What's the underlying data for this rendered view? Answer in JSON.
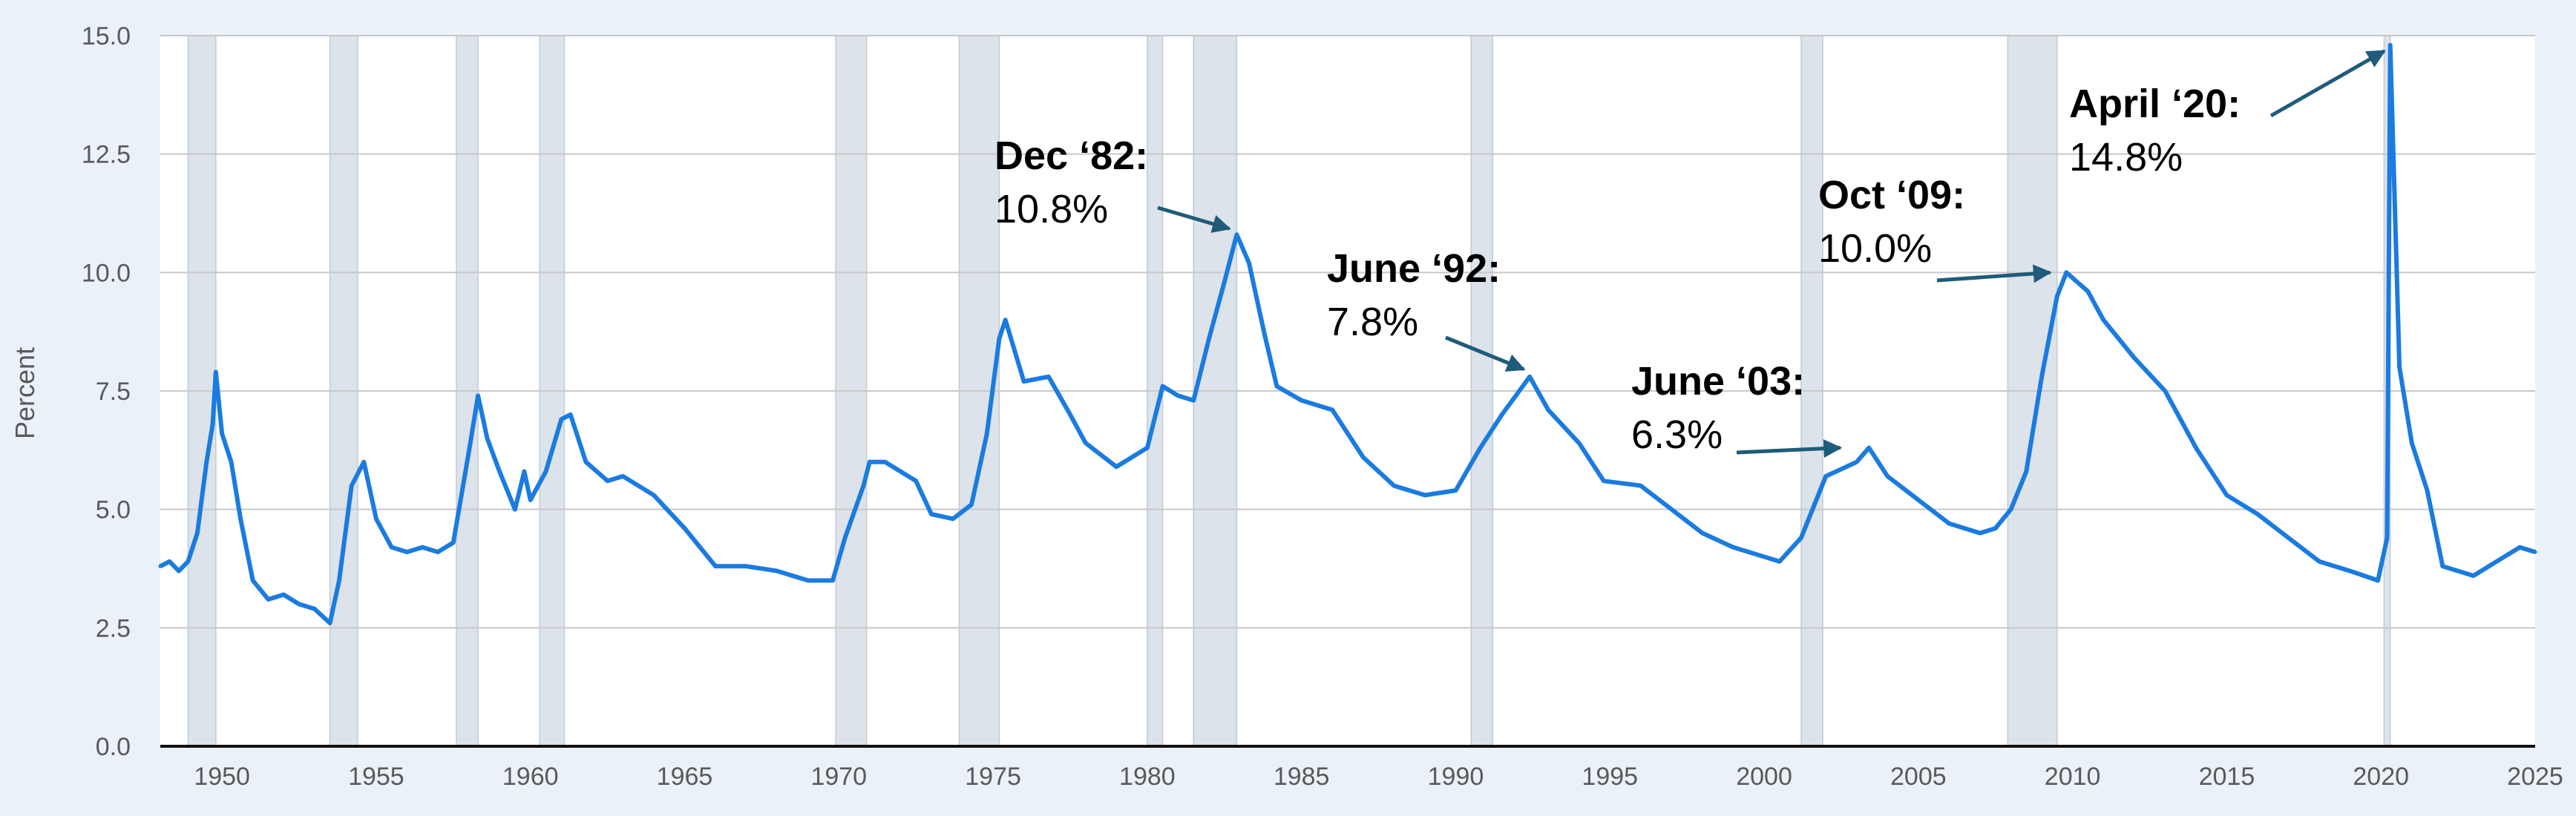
{
  "chart_data": {
    "type": "line",
    "ylabel": "Percent",
    "xlim": [
      1948,
      2025
    ],
    "ylim": [
      0,
      15
    ],
    "yticks": [
      "0.0",
      "2.5",
      "5.0",
      "7.5",
      "10.0",
      "12.5",
      "15.0"
    ],
    "xticks": [
      "1950",
      "1955",
      "1960",
      "1965",
      "1970",
      "1975",
      "1980",
      "1985",
      "1990",
      "1995",
      "2000",
      "2005",
      "2010",
      "2015",
      "2020",
      "2025"
    ],
    "grid": "horizontal",
    "colors": {
      "line": "#1a7be0",
      "recession": "#dde3ea",
      "arrow": "#1f5b7a"
    },
    "recessions": [
      [
        1948.9,
        1949.8
      ],
      [
        1953.5,
        1954.4
      ],
      [
        1957.6,
        1958.3
      ],
      [
        1960.3,
        1961.1
      ],
      [
        1969.9,
        1970.9
      ],
      [
        1973.9,
        1975.2
      ],
      [
        1980.0,
        1980.5
      ],
      [
        1981.5,
        1982.9
      ],
      [
        1990.5,
        1991.2
      ],
      [
        2001.2,
        2001.9
      ],
      [
        2007.9,
        2009.5
      ],
      [
        2020.1,
        2020.3
      ]
    ],
    "series": [
      {
        "points": [
          [
            1948.0,
            3.8
          ],
          [
            1948.3,
            3.9
          ],
          [
            1948.6,
            3.7
          ],
          [
            1948.9,
            3.9
          ],
          [
            1949.2,
            4.5
          ],
          [
            1949.5,
            6.0
          ],
          [
            1949.7,
            6.8
          ],
          [
            1949.8,
            7.9
          ],
          [
            1950.0,
            6.6
          ],
          [
            1950.3,
            6.0
          ],
          [
            1950.6,
            4.8
          ],
          [
            1951.0,
            3.5
          ],
          [
            1951.5,
            3.1
          ],
          [
            1952.0,
            3.2
          ],
          [
            1952.5,
            3.0
          ],
          [
            1953.0,
            2.9
          ],
          [
            1953.5,
            2.6
          ],
          [
            1953.8,
            3.5
          ],
          [
            1954.2,
            5.5
          ],
          [
            1954.6,
            6.0
          ],
          [
            1955.0,
            4.8
          ],
          [
            1955.5,
            4.2
          ],
          [
            1956.0,
            4.1
          ],
          [
            1956.5,
            4.2
          ],
          [
            1957.0,
            4.1
          ],
          [
            1957.5,
            4.3
          ],
          [
            1958.0,
            6.2
          ],
          [
            1958.3,
            7.4
          ],
          [
            1958.6,
            6.5
          ],
          [
            1959.0,
            5.8
          ],
          [
            1959.5,
            5.0
          ],
          [
            1959.8,
            5.8
          ],
          [
            1960.0,
            5.2
          ],
          [
            1960.5,
            5.8
          ],
          [
            1961.0,
            6.9
          ],
          [
            1961.3,
            7.0
          ],
          [
            1961.8,
            6.0
          ],
          [
            1962.5,
            5.6
          ],
          [
            1963.0,
            5.7
          ],
          [
            1964.0,
            5.3
          ],
          [
            1965.0,
            4.6
          ],
          [
            1966.0,
            3.8
          ],
          [
            1967.0,
            3.8
          ],
          [
            1968.0,
            3.7
          ],
          [
            1969.0,
            3.5
          ],
          [
            1969.8,
            3.5
          ],
          [
            1970.2,
            4.4
          ],
          [
            1970.8,
            5.5
          ],
          [
            1971.0,
            6.0
          ],
          [
            1971.5,
            6.0
          ],
          [
            1972.0,
            5.8
          ],
          [
            1972.5,
            5.6
          ],
          [
            1973.0,
            4.9
          ],
          [
            1973.7,
            4.8
          ],
          [
            1974.3,
            5.1
          ],
          [
            1974.8,
            6.6
          ],
          [
            1975.2,
            8.6
          ],
          [
            1975.4,
            9.0
          ],
          [
            1976.0,
            7.7
          ],
          [
            1976.8,
            7.8
          ],
          [
            1977.5,
            7.0
          ],
          [
            1978.0,
            6.4
          ],
          [
            1979.0,
            5.9
          ],
          [
            1980.0,
            6.3
          ],
          [
            1980.5,
            7.6
          ],
          [
            1981.0,
            7.4
          ],
          [
            1981.5,
            7.3
          ],
          [
            1982.0,
            8.6
          ],
          [
            1982.5,
            9.8
          ],
          [
            1982.9,
            10.8
          ],
          [
            1983.3,
            10.2
          ],
          [
            1983.8,
            8.7
          ],
          [
            1984.2,
            7.6
          ],
          [
            1985.0,
            7.3
          ],
          [
            1986.0,
            7.1
          ],
          [
            1987.0,
            6.1
          ],
          [
            1988.0,
            5.5
          ],
          [
            1989.0,
            5.3
          ],
          [
            1990.0,
            5.4
          ],
          [
            1990.8,
            6.3
          ],
          [
            1991.5,
            7.0
          ],
          [
            1992.4,
            7.8
          ],
          [
            1993.0,
            7.1
          ],
          [
            1994.0,
            6.4
          ],
          [
            1994.8,
            5.6
          ],
          [
            1996.0,
            5.5
          ],
          [
            1997.0,
            5.0
          ],
          [
            1998.0,
            4.5
          ],
          [
            1999.0,
            4.2
          ],
          [
            2000.0,
            4.0
          ],
          [
            2000.5,
            3.9
          ],
          [
            2001.2,
            4.4
          ],
          [
            2002.0,
            5.7
          ],
          [
            2003.0,
            6.0
          ],
          [
            2003.4,
            6.3
          ],
          [
            2004.0,
            5.7
          ],
          [
            2005.0,
            5.2
          ],
          [
            2006.0,
            4.7
          ],
          [
            2007.0,
            4.5
          ],
          [
            2007.5,
            4.6
          ],
          [
            2008.0,
            5.0
          ],
          [
            2008.5,
            5.8
          ],
          [
            2009.0,
            7.8
          ],
          [
            2009.5,
            9.5
          ],
          [
            2009.8,
            10.0
          ],
          [
            2010.5,
            9.6
          ],
          [
            2011.0,
            9.0
          ],
          [
            2012.0,
            8.2
          ],
          [
            2013.0,
            7.5
          ],
          [
            2014.0,
            6.3
          ],
          [
            2015.0,
            5.3
          ],
          [
            2016.0,
            4.9
          ],
          [
            2017.0,
            4.4
          ],
          [
            2018.0,
            3.9
          ],
          [
            2019.0,
            3.7
          ],
          [
            2019.9,
            3.5
          ],
          [
            2020.2,
            4.4
          ],
          [
            2020.3,
            14.8
          ],
          [
            2020.6,
            8.0
          ],
          [
            2021.0,
            6.4
          ],
          [
            2021.5,
            5.4
          ],
          [
            2022.0,
            3.8
          ],
          [
            2023.0,
            3.6
          ],
          [
            2024.0,
            4.0
          ],
          [
            2024.5,
            4.2
          ],
          [
            2025.0,
            4.1
          ]
        ]
      }
    ],
    "annotations": [
      {
        "title": "Dec ‘82:",
        "value": "10.8%",
        "point": [
          1982.9,
          10.8
        ]
      },
      {
        "title": "June ‘92:",
        "value": "7.8%",
        "point": [
          1992.4,
          7.8
        ]
      },
      {
        "title": "June ‘03:",
        "value": "6.3%",
        "point": [
          2003.0,
          6.3
        ]
      },
      {
        "title": "Oct ‘09:",
        "value": "10.0%",
        "point": [
          2009.8,
          10.0
        ]
      },
      {
        "title": "April ‘20:",
        "value": "14.8%",
        "point": [
          2020.3,
          14.8
        ]
      }
    ]
  }
}
